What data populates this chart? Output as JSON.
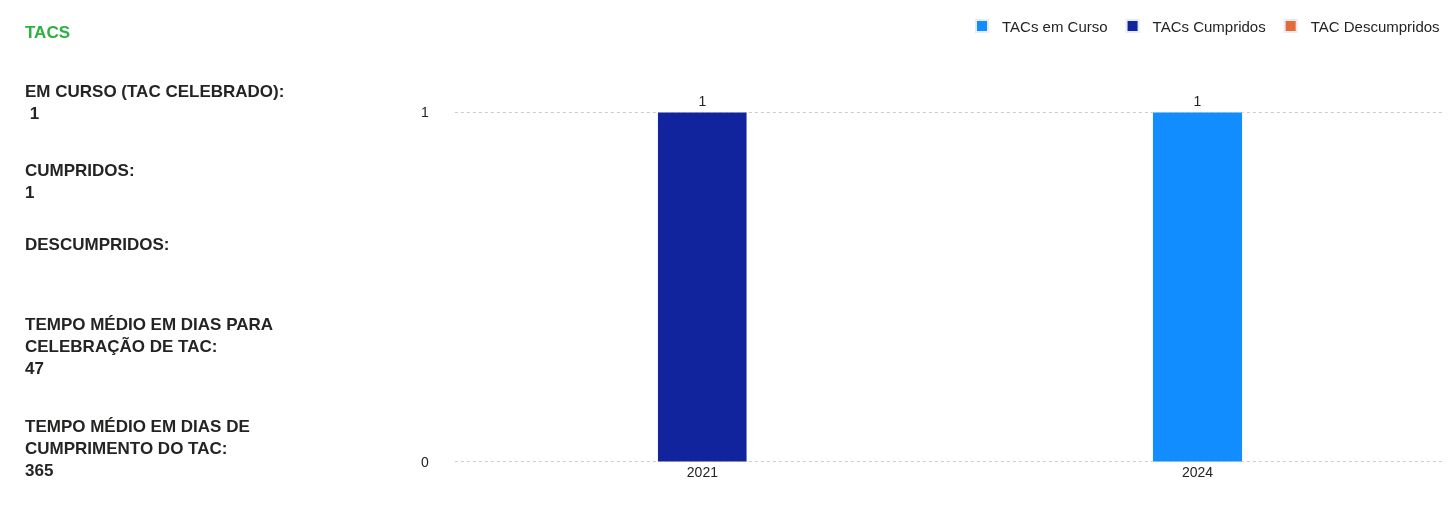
{
  "chart_data": [
    {
      "type": "other",
      "title": "TACS",
      "annotations": [
        "EM CURSO (TAC CELEBRADO):\n 1",
        "CUMPRIDOS:\n1",
        "DESCUMPRIDOS:\n",
        "TEMPO MÉDIO EM DIAS PARA\nCELEBRAÇÃO DE TAC:\n47",
        "TEMPO MÉDIO EM DIAS DE\nCUMPRIMENTO DO TAC:\n365"
      ]
    },
    {
      "type": "bar",
      "stacked": true,
      "categories": [
        "2021",
        "2024"
      ],
      "series": [
        {
          "name": "TACs em Curso",
          "color": "#118dff",
          "values": [
            null,
            1
          ]
        },
        {
          "name": "TACs Cumpridos",
          "color": "#12239e",
          "values": [
            1,
            null
          ]
        },
        {
          "name": "TAC Descumpridos",
          "color": "#e66c37",
          "values": [
            null,
            null
          ]
        }
      ],
      "ylim": [
        0,
        1
      ],
      "yticks": [
        0,
        1
      ],
      "grid": "y",
      "legend": "top right",
      "data_labels": true
    }
  ]
}
